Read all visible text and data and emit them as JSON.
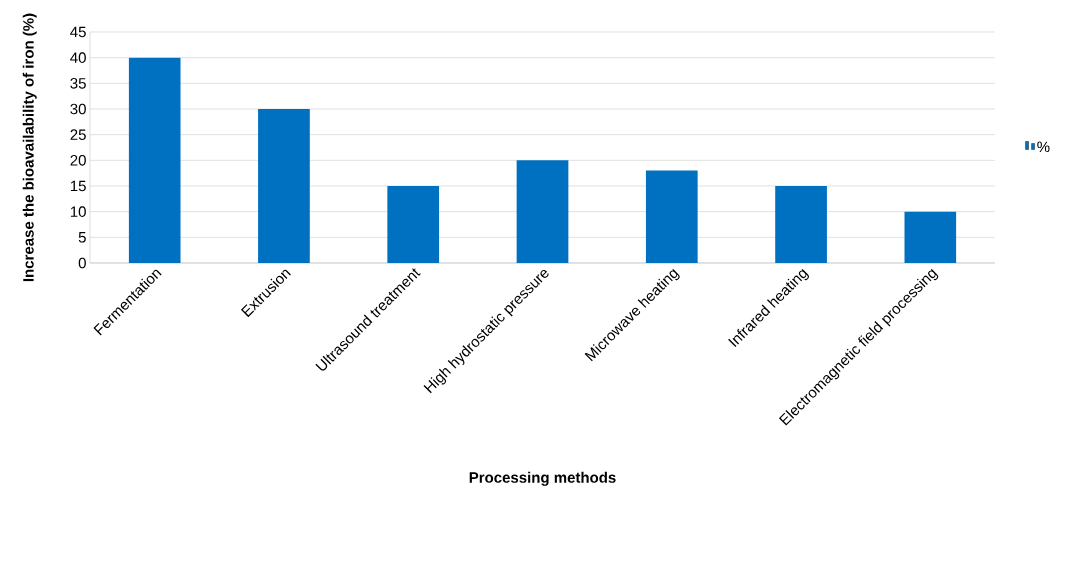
{
  "chart_data": {
    "type": "bar",
    "xlabel": "Processing methods",
    "ylabel": "Increase the bioavailability of iron (%)",
    "categories": [
      "Fermentation",
      "Extrusion",
      "Ultrasound treatment",
      "High hydrostatic pressure",
      "Microwave heating",
      "Infrared heating",
      "Electromagnetic field processing"
    ],
    "series": [
      {
        "name": "%",
        "color": "#0070c0",
        "values": [
          40,
          30,
          15,
          20,
          18,
          15,
          10
        ]
      }
    ],
    "ylim": [
      0,
      45
    ],
    "yticks": [
      0,
      5,
      10,
      15,
      20,
      25,
      30,
      35,
      40,
      45
    ],
    "grid": "y",
    "legend": "right"
  }
}
